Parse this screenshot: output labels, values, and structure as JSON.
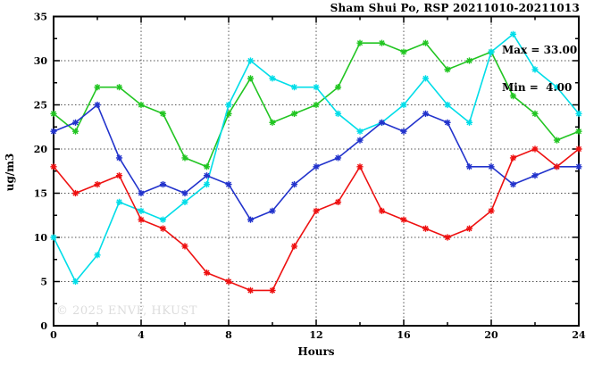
{
  "header": {
    "title": "Sham Shui Po, RSP 20211010-20211013"
  },
  "annotation": {
    "max_label": "Max = 33.00",
    "min_label": "Min =  4.00"
  },
  "watermark": "© 2025 ENVF, HKUST",
  "axes": {
    "xlabel": "Hours",
    "ylabel": "ug/m3"
  },
  "chart_data": {
    "type": "line",
    "title": "Sham Shui Po, RSP 20211010-20211013",
    "xlabel": "Hours",
    "ylabel": "ug/m3",
    "xlim": [
      0,
      24
    ],
    "ylim": [
      0,
      35
    ],
    "x_major_ticks": [
      0,
      4,
      8,
      12,
      16,
      20,
      24
    ],
    "x_minor_step": 2,
    "y_major_ticks": [
      0,
      5,
      10,
      15,
      20,
      25,
      30,
      35
    ],
    "y_minor_step": 2.5,
    "grid_x": [
      4,
      8,
      12,
      16,
      20
    ],
    "grid_y": [
      5,
      10,
      15,
      20,
      25,
      30
    ],
    "legend_position": "none",
    "annotations": [
      "Max = 33.00",
      "Min =  4.00"
    ],
    "x": [
      0,
      1,
      2,
      3,
      4,
      5,
      6,
      7,
      8,
      9,
      10,
      11,
      12,
      13,
      14,
      15,
      16,
      17,
      18,
      19,
      20,
      21,
      22,
      23,
      24
    ],
    "series": [
      {
        "name": "green",
        "color": "#22c522",
        "values": [
          24,
          22,
          27,
          27,
          25,
          24,
          19,
          18,
          24,
          28,
          23,
          24,
          25,
          27,
          32,
          32,
          31,
          32,
          29,
          30,
          31,
          26,
          24,
          21,
          22
        ]
      },
      {
        "name": "cyan",
        "color": "#00dde8",
        "values": [
          10,
          5,
          8,
          14,
          13,
          12,
          14,
          16,
          25,
          30,
          28,
          27,
          27,
          24,
          22,
          23,
          25,
          28,
          25,
          23,
          31,
          33,
          29,
          27,
          24
        ]
      },
      {
        "name": "blue",
        "color": "#2233cc",
        "values": [
          22,
          23,
          25,
          19,
          15,
          16,
          15,
          17,
          16,
          12,
          13,
          16,
          18,
          19,
          21,
          23,
          22,
          24,
          23,
          18,
          18,
          16,
          17,
          18,
          18
        ]
      },
      {
        "name": "red",
        "color": "#ee1111",
        "values": [
          18,
          15,
          16,
          17,
          12,
          11,
          9,
          6,
          5,
          4,
          4,
          9,
          13,
          14,
          18,
          13,
          12,
          11,
          10,
          11,
          13,
          19,
          20,
          18,
          20
        ]
      }
    ]
  }
}
